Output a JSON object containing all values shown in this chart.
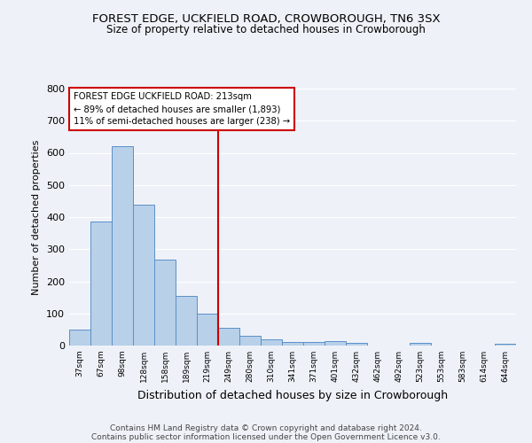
{
  "title": "FOREST EDGE, UCKFIELD ROAD, CROWBOROUGH, TN6 3SX",
  "subtitle": "Size of property relative to detached houses in Crowborough",
  "xlabel": "Distribution of detached houses by size in Crowborough",
  "ylabel": "Number of detached properties",
  "categories": [
    "37sqm",
    "67sqm",
    "98sqm",
    "128sqm",
    "158sqm",
    "189sqm",
    "219sqm",
    "249sqm",
    "280sqm",
    "310sqm",
    "341sqm",
    "371sqm",
    "401sqm",
    "432sqm",
    "462sqm",
    "492sqm",
    "523sqm",
    "553sqm",
    "583sqm",
    "614sqm",
    "644sqm"
  ],
  "values": [
    50,
    387,
    622,
    440,
    268,
    155,
    98,
    55,
    30,
    19,
    11,
    12,
    13,
    8,
    0,
    0,
    8,
    0,
    0,
    0,
    5
  ],
  "bar_color": "#b8d0e8",
  "bar_edge_color": "#5b8fc9",
  "vline_position": 6.5,
  "vline_color": "#cc0000",
  "annotation_line1": "FOREST EDGE UCKFIELD ROAD: 213sqm",
  "annotation_line2": "← 89% of detached houses are smaller (1,893)",
  "annotation_line3": "11% of semi-detached houses are larger (238) →",
  "annotation_box_color": "#ffffff",
  "annotation_box_edge": "#cc0000",
  "ylim": [
    0,
    800
  ],
  "yticks": [
    0,
    100,
    200,
    300,
    400,
    500,
    600,
    700,
    800
  ],
  "background_color": "#eef2f8",
  "grid_color": "#ffffff",
  "footer_line1": "Contains HM Land Registry data © Crown copyright and database right 2024.",
  "footer_line2": "Contains public sector information licensed under the Open Government Licence v3.0.",
  "title_fontsize": 9.5,
  "subtitle_fontsize": 8.5,
  "ylabel_fontsize": 8,
  "xlabel_fontsize": 9
}
